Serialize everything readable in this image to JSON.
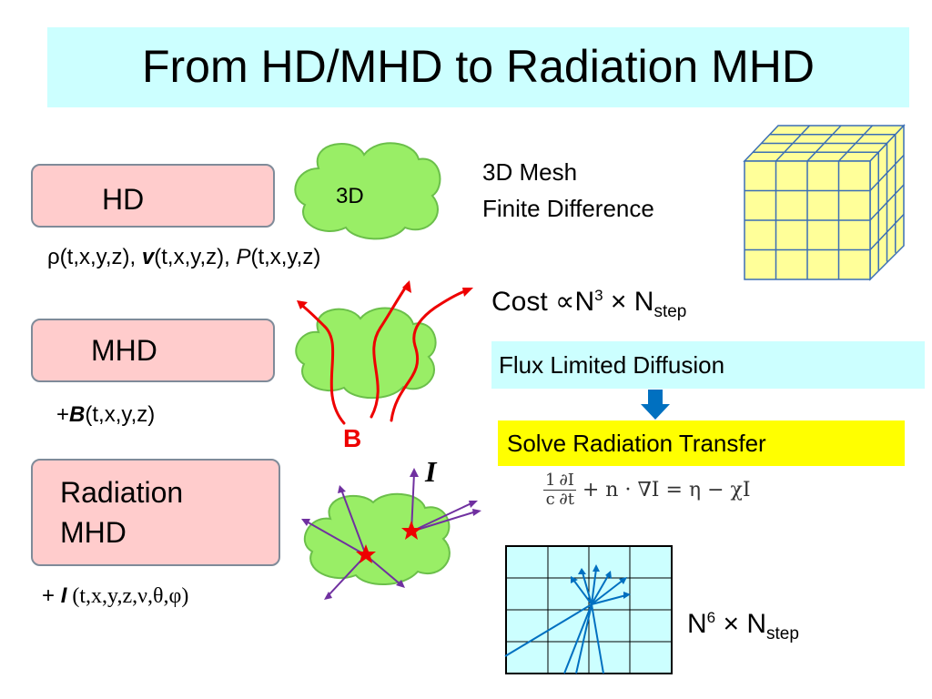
{
  "title": "From HD/MHD to Radiation MHD",
  "hd": {
    "label": "HD",
    "cloud_label": "3D",
    "vars_rho": "ρ(t,x,y,z),",
    "vars_v_sym": "v",
    "vars_v_args": "(t,x,y,z),",
    "vars_p_sym": "P",
    "vars_p_args": "(t,x,y,z)"
  },
  "mhd": {
    "label": "MHD",
    "plus": "+",
    "b_sym": "B",
    "b_args": "(t,x,y,z)",
    "field_label": "B"
  },
  "rmhd": {
    "label_line1": "Radiation",
    "label_line2": "MHD",
    "plus": "+ ",
    "i_sym": "I",
    "i_args": " (t,x,y,z,ν,θ,φ)",
    "intensity_label": "I"
  },
  "mesh": {
    "line1": "3D Mesh",
    "line2": "Finite Difference"
  },
  "cost1": {
    "text": "Cost ∝N",
    "exp": "3",
    "times": " × N",
    "sub": "step"
  },
  "cost2": {
    "text": "N",
    "exp": "6",
    "times": " × N",
    "sub": "step"
  },
  "fld_label": "Flux Limited Diffusion",
  "srt_label": "Solve  Radiation Transfer",
  "equation": {
    "frac_num": "1",
    "frac_den": "c",
    "dnum": "∂I",
    "dden": "∂t",
    "rest": "+ n · ∇I = η − χI"
  },
  "colors": {
    "title_bg": "#ccffff",
    "box_fill": "#ffcccc",
    "cloud_fill": "#99ee66",
    "field_lines": "#ee0000",
    "rays": "#7030a0",
    "cube_fill": "#ffff99",
    "grid_fill": "#ccffff",
    "grid_rays": "#0070c0",
    "arrow": "#0070c0",
    "srt_bg": "#ffff00"
  }
}
